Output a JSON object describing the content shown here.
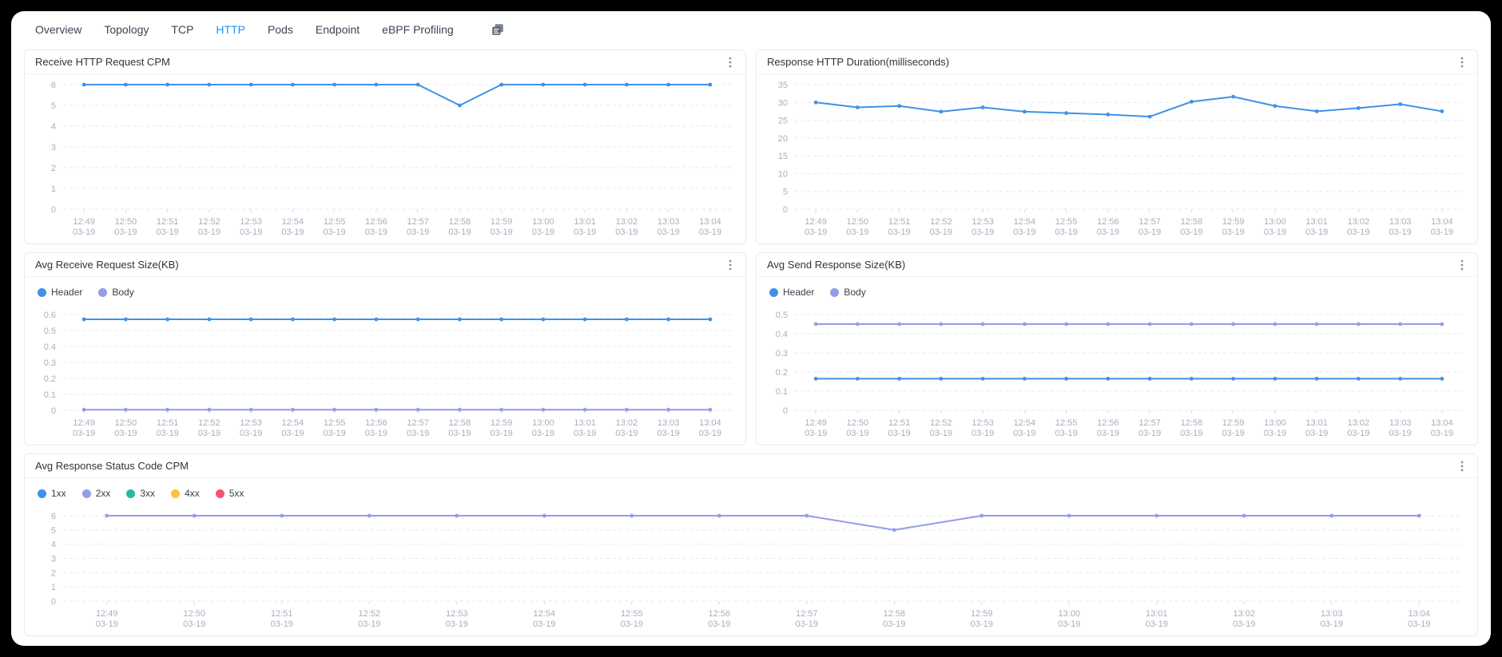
{
  "tabs": {
    "items": [
      {
        "label": "Overview",
        "active": false
      },
      {
        "label": "Topology",
        "active": false
      },
      {
        "label": "TCP",
        "active": false
      },
      {
        "label": "HTTP",
        "active": true
      },
      {
        "label": "Pods",
        "active": false
      },
      {
        "label": "Endpoint",
        "active": false
      },
      {
        "label": "eBPF Profiling",
        "active": false
      }
    ]
  },
  "colors": {
    "active_tab": "#1890ff",
    "line_blue": "#3f92e6",
    "line_purple": "#959ce8",
    "teal": "#2cb5a5",
    "yellow": "#f9c437",
    "red": "#f4536e"
  },
  "chart_data": [
    {
      "type": "line",
      "title": "Receive HTTP Request CPM",
      "x": [
        "12:49",
        "12:50",
        "12:51",
        "12:52",
        "12:53",
        "12:54",
        "12:55",
        "12:56",
        "12:57",
        "12:58",
        "12:59",
        "13:00",
        "13:01",
        "13:02",
        "13:03",
        "13:04"
      ],
      "xdate": "03-19",
      "yticks": [
        6,
        5,
        4,
        3,
        2,
        1,
        0
      ],
      "ylim": [
        0,
        6
      ],
      "grid": "dashed",
      "legend": false,
      "series": [
        {
          "color": "#3f92e6",
          "values": [
            6,
            6,
            6,
            6,
            6,
            6,
            6,
            6,
            6,
            5,
            6,
            6,
            6,
            6,
            6,
            6
          ]
        }
      ]
    },
    {
      "type": "line",
      "title": "Response HTTP Duration(milliseconds)",
      "x": [
        "12:49",
        "12:50",
        "12:51",
        "12:52",
        "12:53",
        "12:54",
        "12:55",
        "12:56",
        "12:57",
        "12:58",
        "12:59",
        "13:00",
        "13:01",
        "13:02",
        "13:03",
        "13:04"
      ],
      "xdate": "03-19",
      "yticks": [
        35,
        30,
        25,
        20,
        15,
        10,
        5,
        0
      ],
      "ylim": [
        0,
        35
      ],
      "grid": "dashed",
      "legend": false,
      "series": [
        {
          "color": "#3f92e6",
          "values": [
            30,
            28.6,
            29,
            27.4,
            28.6,
            27.4,
            27,
            26.6,
            26,
            30.2,
            31.6,
            29,
            27.5,
            28.4,
            29.5,
            27.5
          ]
        }
      ]
    },
    {
      "type": "line",
      "title": "Avg Receive Request Size(KB)",
      "x": [
        "12:49",
        "12:50",
        "12:51",
        "12:52",
        "12:53",
        "12:54",
        "12:55",
        "12:56",
        "12:57",
        "12:58",
        "12:59",
        "13:00",
        "13:01",
        "13:02",
        "13:03",
        "13:04"
      ],
      "xdate": "03-19",
      "yticks": [
        0.6,
        0.5,
        0.4,
        0.3,
        0.2,
        0.1,
        0
      ],
      "ylim": [
        0,
        0.6
      ],
      "grid": "dashed",
      "legend": true,
      "legend_position": "top-left",
      "series": [
        {
          "name": "Header",
          "color": "#3f92e6",
          "values": [
            0.57,
            0.57,
            0.57,
            0.57,
            0.57,
            0.57,
            0.57,
            0.57,
            0.57,
            0.57,
            0.57,
            0.57,
            0.57,
            0.57,
            0.57,
            0.57
          ]
        },
        {
          "name": "Body",
          "color": "#959ce8",
          "values": [
            0.004,
            0.004,
            0.004,
            0.004,
            0.004,
            0.004,
            0.004,
            0.004,
            0.004,
            0.004,
            0.004,
            0.004,
            0.004,
            0.004,
            0.004,
            0.004
          ]
        }
      ]
    },
    {
      "type": "line",
      "title": "Avg Send Response Size(KB)",
      "x": [
        "12:49",
        "12:50",
        "12:51",
        "12:52",
        "12:53",
        "12:54",
        "12:55",
        "12:56",
        "12:57",
        "12:58",
        "12:59",
        "13:00",
        "13:01",
        "13:02",
        "13:03",
        "13:04"
      ],
      "xdate": "03-19",
      "yticks": [
        0.5,
        0.4,
        0.3,
        0.2,
        0.1,
        0
      ],
      "ylim": [
        0,
        0.5
      ],
      "grid": "dashed",
      "legend": true,
      "legend_position": "top-left",
      "series": [
        {
          "name": "Header",
          "color": "#3f92e6",
          "values": [
            0.165,
            0.165,
            0.165,
            0.165,
            0.165,
            0.165,
            0.165,
            0.165,
            0.165,
            0.165,
            0.165,
            0.165,
            0.165,
            0.165,
            0.165,
            0.165
          ]
        },
        {
          "name": "Body",
          "color": "#959ce8",
          "values": [
            0.45,
            0.45,
            0.45,
            0.45,
            0.45,
            0.45,
            0.45,
            0.45,
            0.45,
            0.45,
            0.45,
            0.45,
            0.45,
            0.45,
            0.45,
            0.45
          ]
        }
      ]
    },
    {
      "type": "line",
      "title": "Avg Response Status Code CPM",
      "x": [
        "12:49",
        "12:50",
        "12:51",
        "12:52",
        "12:53",
        "12:54",
        "12:55",
        "12:56",
        "12:57",
        "12:58",
        "12:59",
        "13:00",
        "13:01",
        "13:02",
        "13:03",
        "13:04"
      ],
      "xdate": "03-19",
      "yticks": [
        6,
        5,
        4,
        3,
        2,
        1,
        0
      ],
      "ylim": [
        0,
        6
      ],
      "grid": "dashed",
      "legend": true,
      "legend_position": "top-left",
      "series": [
        {
          "name": "1xx",
          "color": "#3f92e6",
          "values": null
        },
        {
          "name": "2xx",
          "color": "#959ce8",
          "values": [
            6,
            6,
            6,
            6,
            6,
            6,
            6,
            6,
            6,
            5,
            6,
            6,
            6,
            6,
            6,
            6
          ]
        },
        {
          "name": "3xx",
          "color": "#2cb5a5",
          "values": null
        },
        {
          "name": "4xx",
          "color": "#f9c437",
          "values": null
        },
        {
          "name": "5xx",
          "color": "#f4536e",
          "values": null
        }
      ]
    }
  ]
}
